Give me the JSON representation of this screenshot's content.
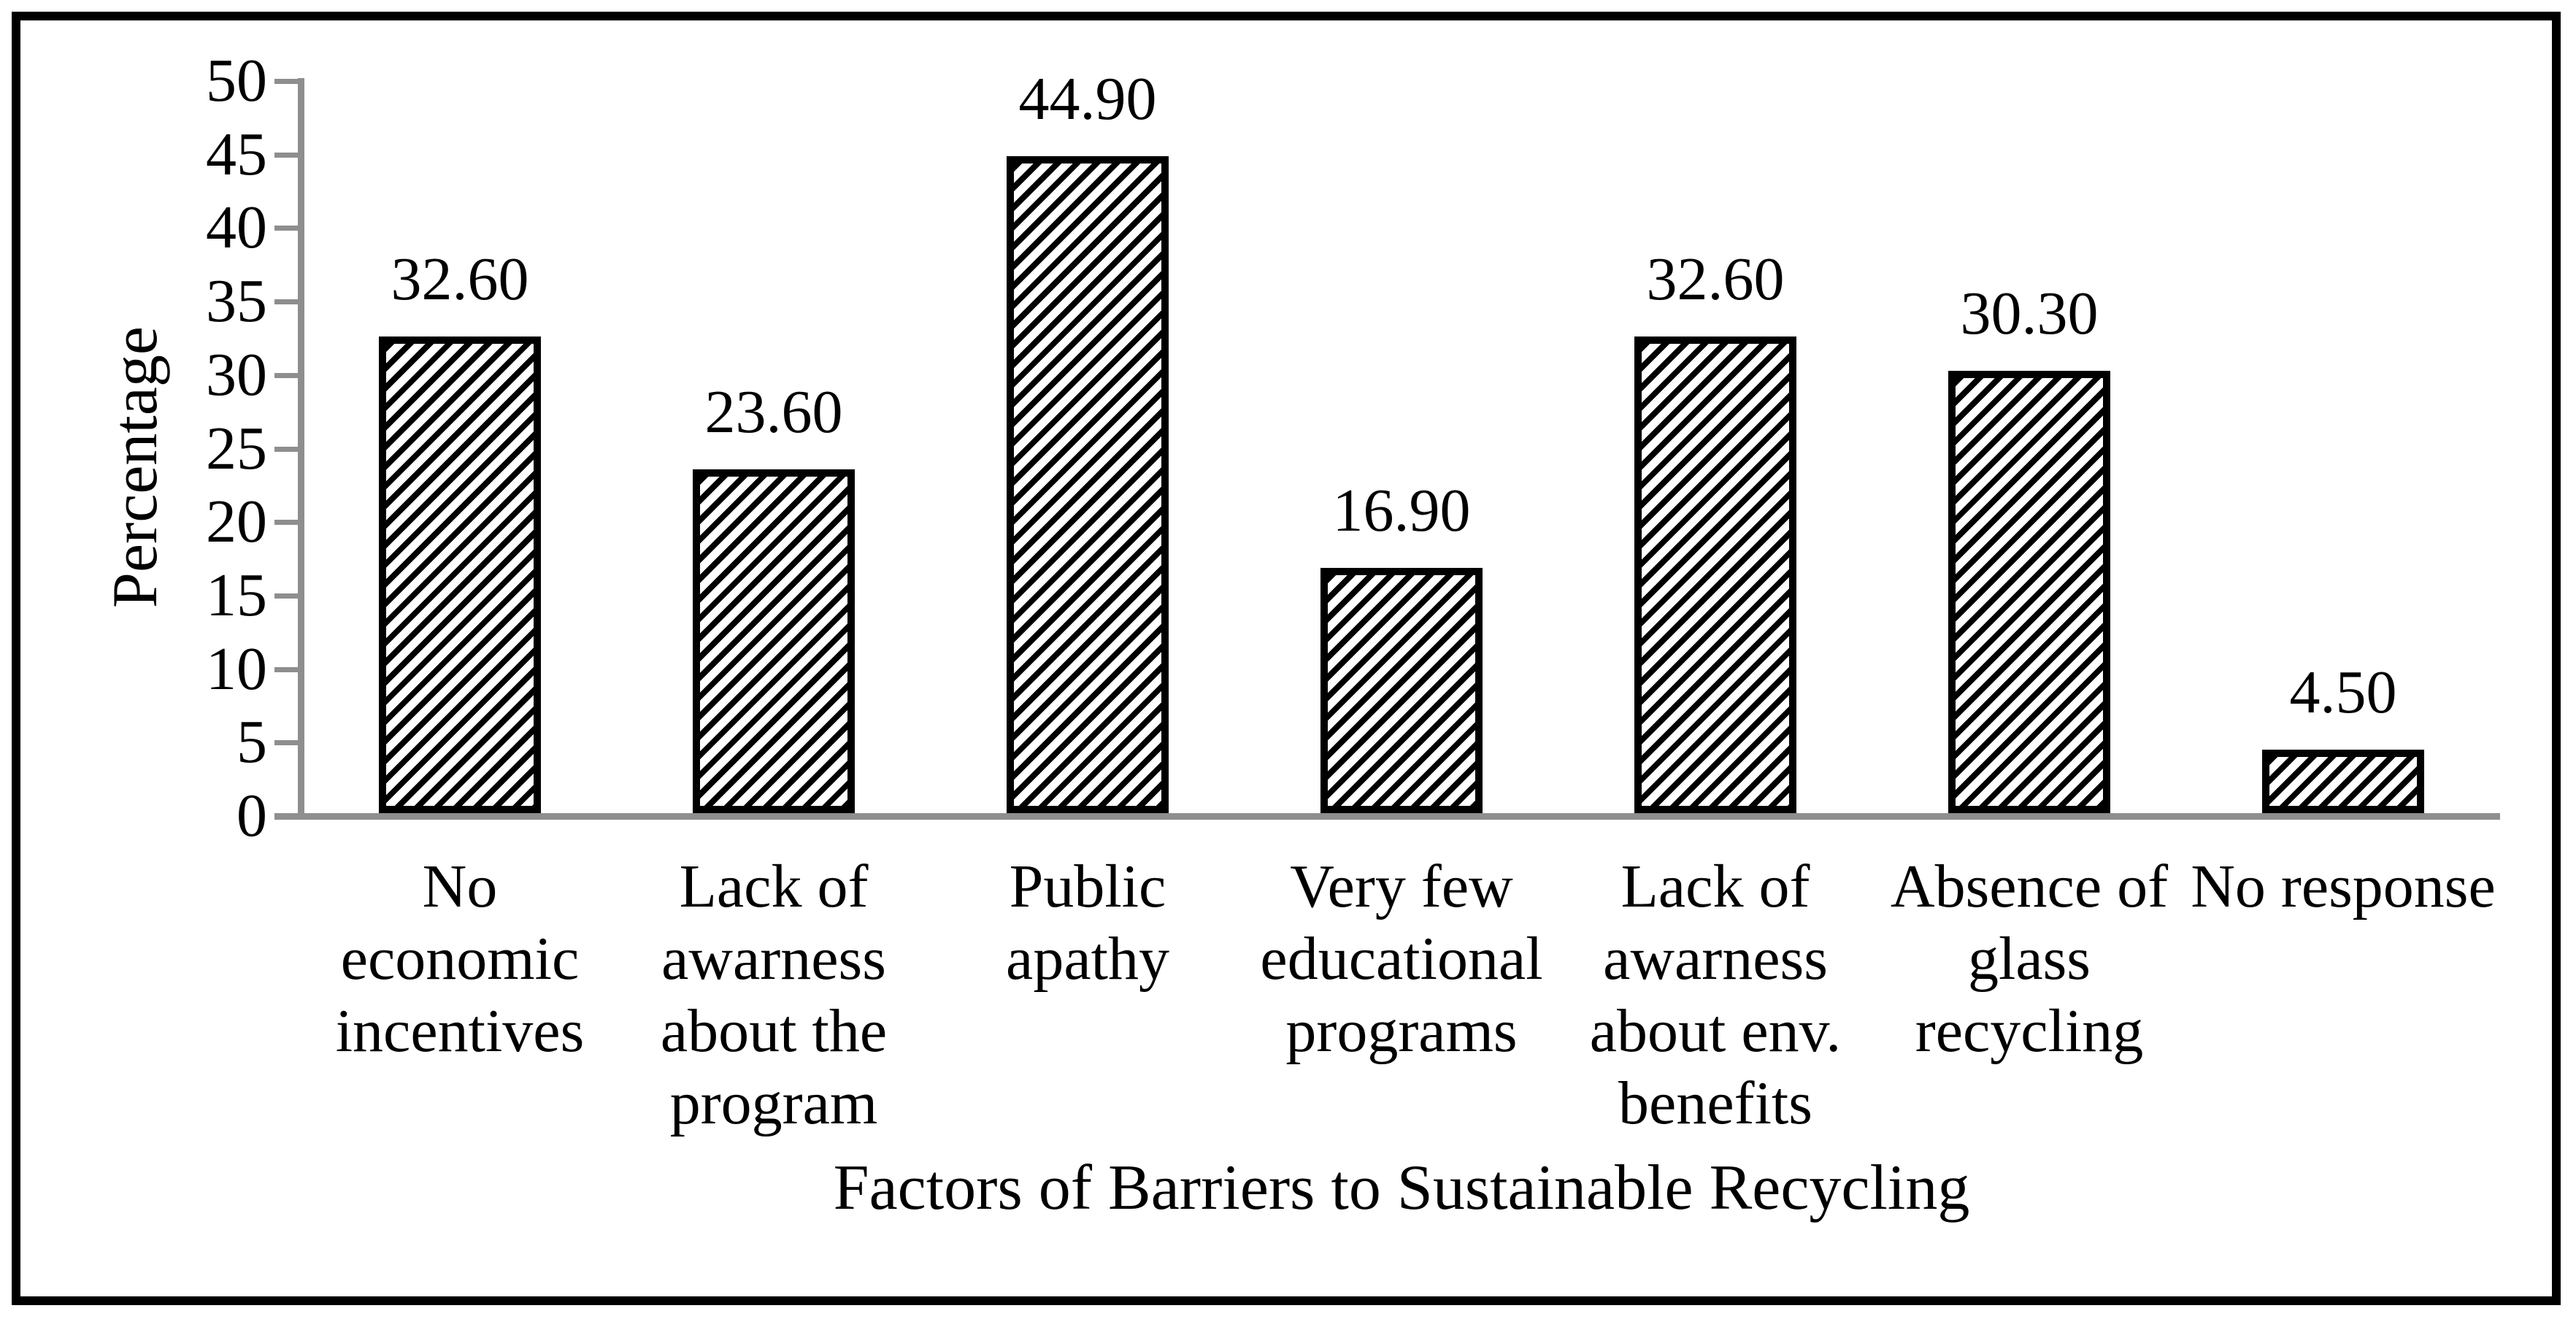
{
  "figure": {
    "background": "#ffffff",
    "frame_border_color": "#000000",
    "axis_color": "#8e8e8e",
    "text_color": "#000000",
    "bar_fill": "#ffffff",
    "bar_hatch_color": "#000000",
    "bar_border_color": "#000000",
    "bar_hatch_style": "forward-diagonal-stripes"
  },
  "chart_data": {
    "type": "bar",
    "title": "",
    "xlabel": "Factors of Barriers to Sustainable Recycling",
    "ylabel": "Percentage",
    "ylim": [
      0,
      50
    ],
    "ytick_step": 5,
    "yticks": [
      0,
      5,
      10,
      15,
      20,
      25,
      30,
      35,
      40,
      45,
      50
    ],
    "grid": false,
    "legend_position": "none",
    "categories": [
      "No economic incentives",
      "Lack of awarness about the program",
      "Public apathy",
      "Very few educational programs",
      "Lack of awarness about env. benefits",
      "Absence of glass recycling",
      "No response"
    ],
    "values": [
      32.6,
      23.6,
      44.9,
      16.9,
      32.6,
      30.3,
      4.5
    ],
    "value_labels": [
      "32.60",
      "23.60",
      "44.90",
      "16.90",
      "32.60",
      "30.30",
      "4.50"
    ]
  }
}
